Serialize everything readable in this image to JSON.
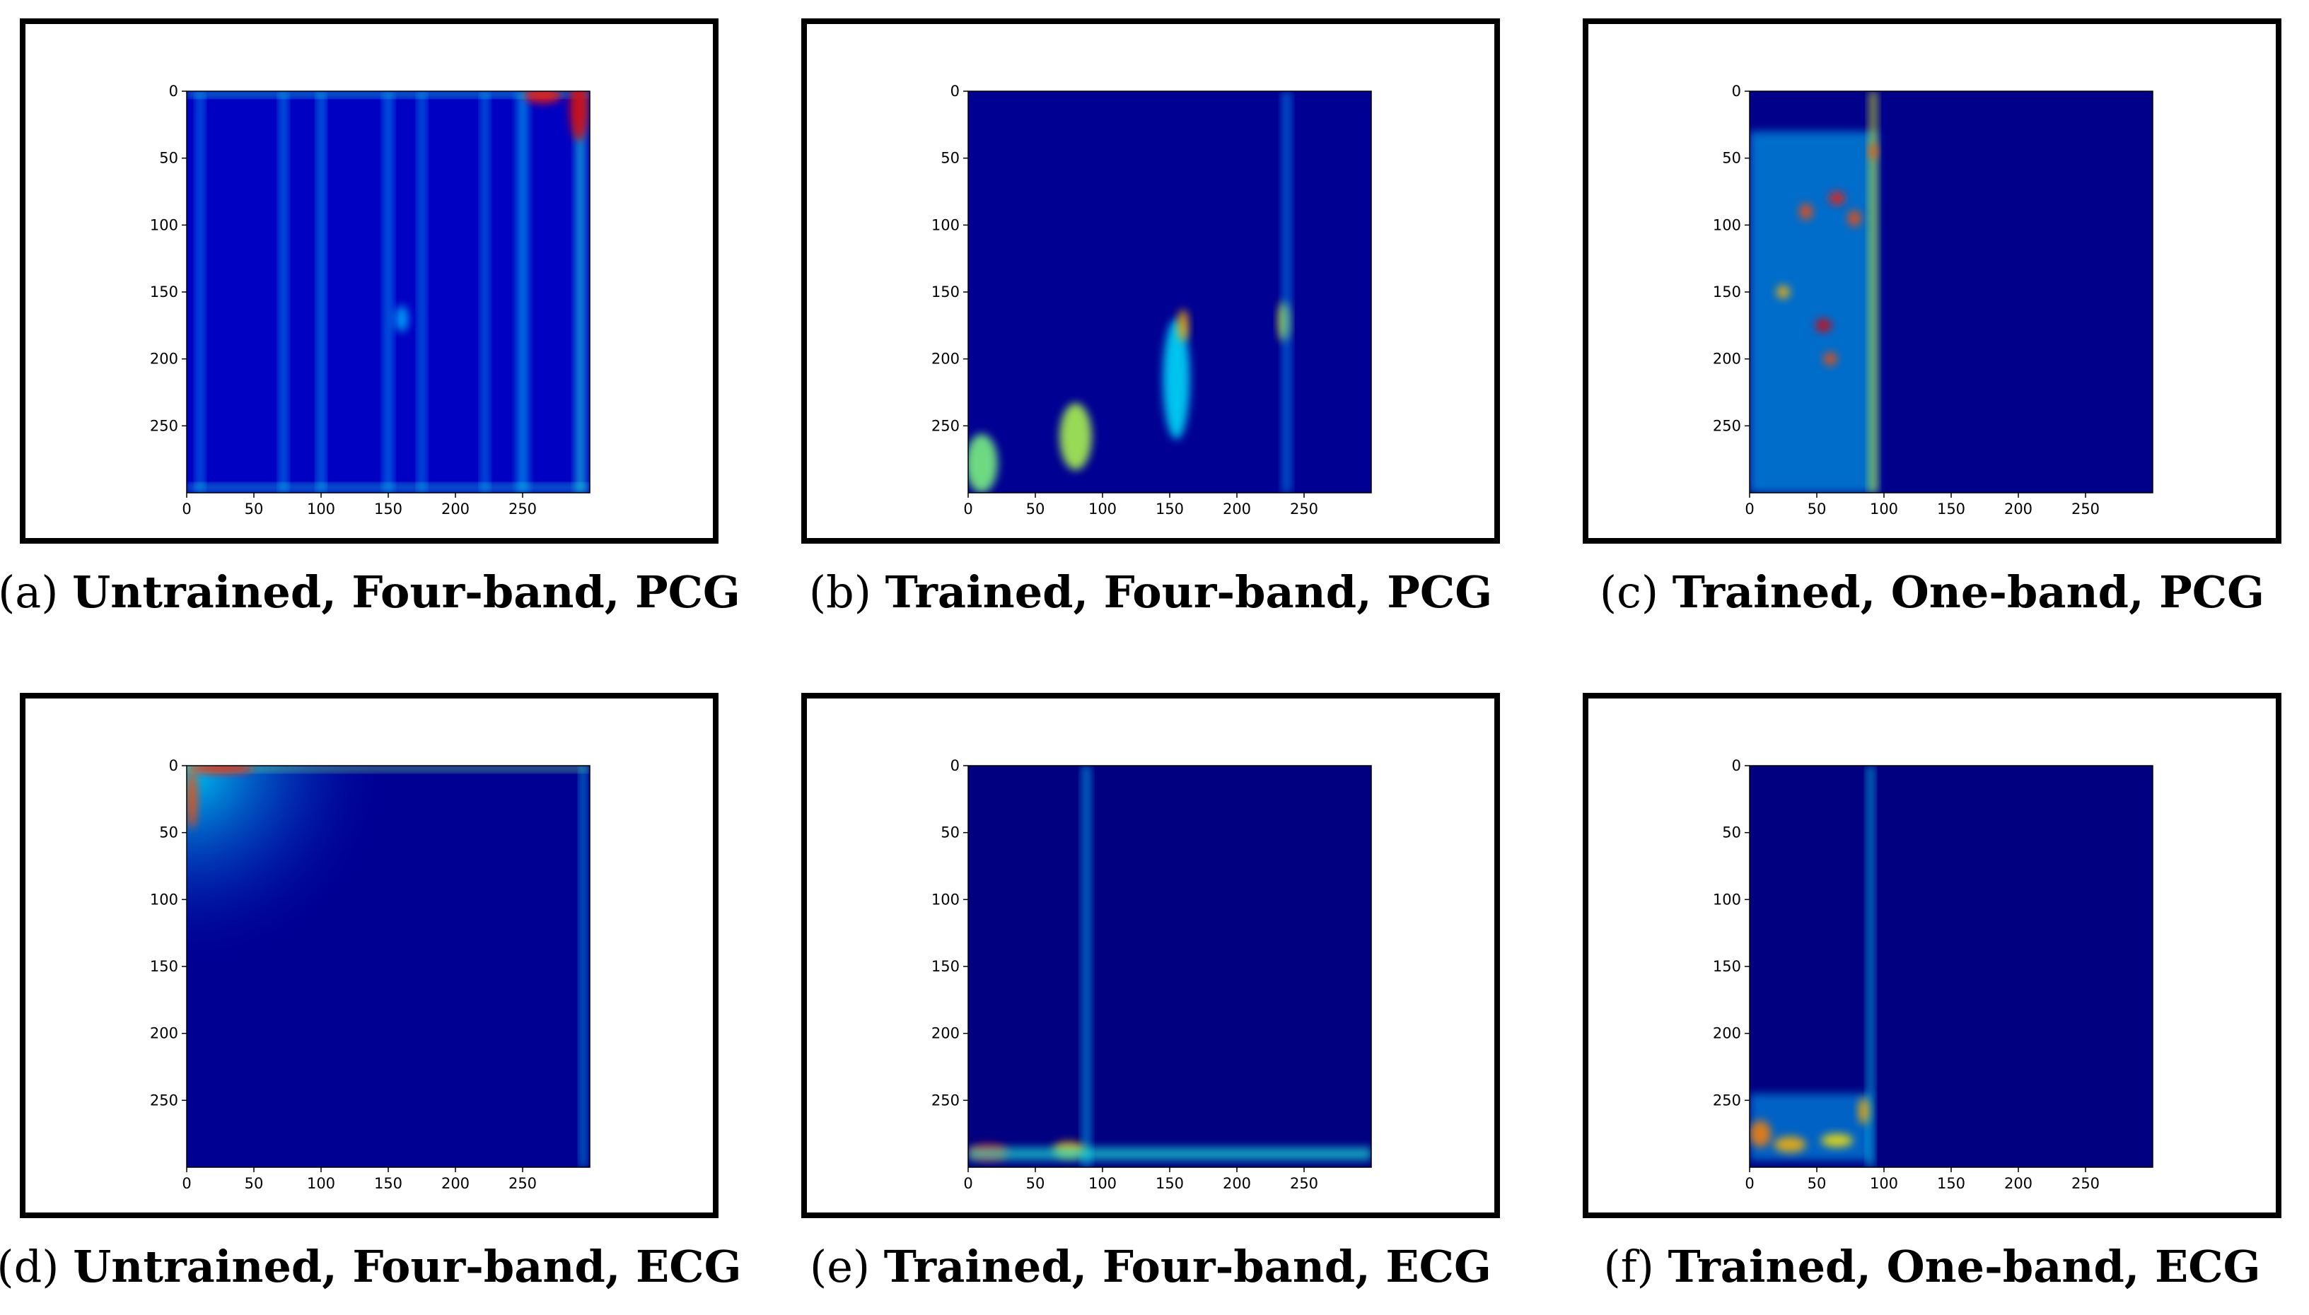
{
  "figures": [
    {
      "letter": "a",
      "caption": "Untrained, Four-band, PCG"
    },
    {
      "letter": "b",
      "caption": "Trained, Four-band, PCG"
    },
    {
      "letter": "c",
      "caption": "Trained, One-band, PCG"
    },
    {
      "letter": "d",
      "caption": "Untrained, Four-band, ECG"
    },
    {
      "letter": "e",
      "caption": "Trained, Four-band, ECG"
    },
    {
      "letter": "f",
      "caption": "Trained, One-band, ECG"
    }
  ],
  "colors": {
    "background": "#00008b",
    "colormap": "jet",
    "frame": "#000000"
  },
  "chart_data": [
    {
      "type": "heatmap",
      "id": "a",
      "xlim": [
        0,
        300
      ],
      "ylim": [
        300,
        0
      ],
      "x_ticks": [
        0,
        50,
        100,
        150,
        200,
        250
      ],
      "y_ticks": [
        0,
        50,
        100,
        150,
        200,
        250
      ],
      "base_level": 0.18,
      "features": [
        {
          "kind": "vstripe",
          "x": 10,
          "w": 5,
          "val": 0.1
        },
        {
          "kind": "vstripe",
          "x": 72,
          "w": 5,
          "val": 0.12
        },
        {
          "kind": "vstripe",
          "x": 100,
          "w": 5,
          "val": 0.12
        },
        {
          "kind": "vstripe",
          "x": 150,
          "w": 6,
          "val": 0.1
        },
        {
          "kind": "vstripe",
          "x": 175,
          "w": 5,
          "val": 0.1
        },
        {
          "kind": "vstripe",
          "x": 222,
          "w": 5,
          "val": 0.1
        },
        {
          "kind": "vstripe",
          "x": 250,
          "w": 8,
          "val": 0.12
        },
        {
          "kind": "vstripe",
          "x": 293,
          "w": 7,
          "val": 0.2
        },
        {
          "kind": "hstripe",
          "y": 2,
          "h": 4,
          "val": 0.2
        },
        {
          "kind": "hstripe",
          "y": 296,
          "h": 4,
          "val": 0.2
        },
        {
          "kind": "blob",
          "x": 265,
          "y": 3,
          "rx": 14,
          "ry": 6,
          "val": 0.85
        },
        {
          "kind": "blob",
          "x": 292,
          "y": 12,
          "rx": 7,
          "ry": 25,
          "val": 0.9
        },
        {
          "kind": "blob",
          "x": 160,
          "y": 170,
          "rx": 5,
          "ry": 10,
          "val": 0.3
        }
      ]
    },
    {
      "type": "heatmap",
      "id": "b",
      "xlim": [
        0,
        300
      ],
      "ylim": [
        300,
        0
      ],
      "x_ticks": [
        0,
        50,
        100,
        150,
        200,
        250
      ],
      "y_ticks": [
        0,
        50,
        100,
        150,
        200,
        250
      ],
      "base_level": 0.05,
      "features": [
        {
          "kind": "blob",
          "x": 10,
          "y": 278,
          "rx": 12,
          "ry": 22,
          "val": 0.5
        },
        {
          "kind": "blob",
          "x": 80,
          "y": 258,
          "rx": 12,
          "ry": 25,
          "val": 0.55
        },
        {
          "kind": "blob",
          "x": 155,
          "y": 215,
          "rx": 10,
          "ry": 45,
          "val": 0.35
        },
        {
          "kind": "blob",
          "x": 160,
          "y": 175,
          "rx": 4,
          "ry": 12,
          "val": 0.7
        },
        {
          "kind": "blob",
          "x": 235,
          "y": 172,
          "rx": 4,
          "ry": 15,
          "val": 0.6
        },
        {
          "kind": "vstripe",
          "x": 237,
          "w": 6,
          "val": 0.08
        }
      ]
    },
    {
      "type": "heatmap",
      "id": "c",
      "xlim": [
        0,
        300
      ],
      "ylim": [
        300,
        0
      ],
      "x_ticks": [
        0,
        50,
        100,
        150,
        200,
        250
      ],
      "y_ticks": [
        0,
        50,
        100,
        150,
        200,
        250
      ],
      "base_level": 0.03,
      "features": [
        {
          "kind": "region",
          "x0": 0,
          "x1": 95,
          "y0": 30,
          "y1": 300,
          "val": 0.32
        },
        {
          "kind": "vstripe",
          "x": 92,
          "w": 6,
          "val": 0.4
        },
        {
          "kind": "blob",
          "x": 42,
          "y": 90,
          "rx": 5,
          "ry": 6,
          "val": 0.8
        },
        {
          "kind": "blob",
          "x": 65,
          "y": 80,
          "rx": 6,
          "ry": 5,
          "val": 0.85
        },
        {
          "kind": "blob",
          "x": 78,
          "y": 95,
          "rx": 5,
          "ry": 6,
          "val": 0.8
        },
        {
          "kind": "blob",
          "x": 55,
          "y": 175,
          "rx": 6,
          "ry": 5,
          "val": 0.9
        },
        {
          "kind": "blob",
          "x": 60,
          "y": 200,
          "rx": 5,
          "ry": 5,
          "val": 0.8
        },
        {
          "kind": "blob",
          "x": 25,
          "y": 150,
          "rx": 5,
          "ry": 5,
          "val": 0.7
        },
        {
          "kind": "blob",
          "x": 92,
          "y": 45,
          "rx": 3,
          "ry": 6,
          "val": 0.8
        }
      ]
    },
    {
      "type": "heatmap",
      "id": "d",
      "xlim": [
        0,
        300
      ],
      "ylim": [
        300,
        0
      ],
      "x_ticks": [
        0,
        50,
        100,
        150,
        200,
        250
      ],
      "y_ticks": [
        0,
        50,
        100,
        150,
        200,
        250
      ],
      "base_level": 0.05,
      "features": [
        {
          "kind": "gradient_tl",
          "val": 0.35,
          "radius": 150
        },
        {
          "kind": "hstripe",
          "y": 2,
          "h": 4,
          "val": 0.3
        },
        {
          "kind": "blob",
          "x": 25,
          "y": 2,
          "rx": 25,
          "ry": 4,
          "val": 0.85
        },
        {
          "kind": "blob",
          "x": 4,
          "y": 25,
          "rx": 4,
          "ry": 22,
          "val": 0.8
        },
        {
          "kind": "vstripe",
          "x": 295,
          "w": 4,
          "val": 0.15
        }
      ]
    },
    {
      "type": "heatmap",
      "id": "e",
      "xlim": [
        0,
        300
      ],
      "ylim": [
        300,
        0
      ],
      "x_ticks": [
        0,
        50,
        100,
        150,
        200,
        250
      ],
      "y_ticks": [
        0,
        50,
        100,
        150,
        200,
        250
      ],
      "base_level": 0.0,
      "features": [
        {
          "kind": "vstripe",
          "x": 88,
          "w": 6,
          "val": 0.12
        },
        {
          "kind": "blob",
          "x": 15,
          "y": 289,
          "rx": 15,
          "ry": 6,
          "val": 0.85
        },
        {
          "kind": "blob",
          "x": 75,
          "y": 287,
          "rx": 12,
          "ry": 6,
          "val": 0.7
        },
        {
          "kind": "hstripe",
          "y": 290,
          "h": 10,
          "val": 0.2
        }
      ]
    },
    {
      "type": "heatmap",
      "id": "f",
      "xlim": [
        0,
        300
      ],
      "ylim": [
        300,
        0
      ],
      "x_ticks": [
        0,
        50,
        100,
        150,
        200,
        250
      ],
      "y_ticks": [
        0,
        50,
        100,
        150,
        200,
        250
      ],
      "base_level": 0.0,
      "features": [
        {
          "kind": "region",
          "x0": 0,
          "x1": 90,
          "y0": 245,
          "y1": 295,
          "val": 0.3
        },
        {
          "kind": "vstripe",
          "x": 90,
          "w": 5,
          "val": 0.15
        },
        {
          "kind": "blob",
          "x": 8,
          "y": 275,
          "rx": 8,
          "ry": 10,
          "val": 0.75
        },
        {
          "kind": "blob",
          "x": 30,
          "y": 283,
          "rx": 12,
          "ry": 6,
          "val": 0.7
        },
        {
          "kind": "blob",
          "x": 65,
          "y": 280,
          "rx": 12,
          "ry": 5,
          "val": 0.65
        },
        {
          "kind": "blob",
          "x": 85,
          "y": 258,
          "rx": 4,
          "ry": 10,
          "val": 0.7
        }
      ]
    }
  ]
}
